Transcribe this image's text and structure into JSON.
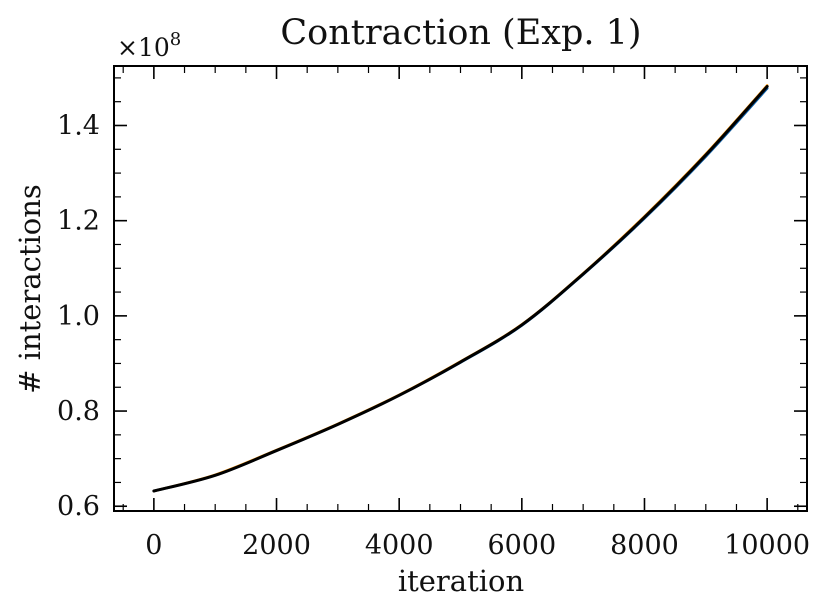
{
  "chart_data": {
    "type": "line",
    "title": "Contraction (Exp. 1)",
    "xlabel": "iteration",
    "ylabel": "# interactions",
    "offset_label": "×10",
    "offset_exponent": "8",
    "xlim": [
      -650,
      10650
    ],
    "ylim": [
      0.59,
      1.525
    ],
    "xticks": [
      0,
      2000,
      4000,
      6000,
      8000,
      10000
    ],
    "xtick_labels": [
      "0",
      "2000",
      "4000",
      "6000",
      "8000",
      "10000"
    ],
    "yticks": [
      0.6,
      0.8,
      1.0,
      1.2,
      1.4
    ],
    "ytick_labels": [
      "0.6",
      "0.8",
      "1.0",
      "1.2",
      "1.4"
    ],
    "grid": false,
    "series": [
      {
        "color": "#0c5da5",
        "x": [
          0,
          1000,
          2000,
          3000,
          4000,
          5000,
          6000,
          7000,
          8000,
          9000,
          10000
        ],
        "y": [
          0.632,
          0.665,
          0.717,
          0.772,
          0.833,
          0.902,
          0.98,
          1.087,
          1.205,
          1.335,
          1.478
        ]
      },
      {
        "color": "#ff9500",
        "x": [
          0,
          1000,
          2000,
          3000,
          4000,
          5000,
          6000,
          7000,
          8000,
          9000,
          10000
        ],
        "y": [
          0.632,
          0.666,
          0.718,
          0.773,
          0.834,
          0.904,
          0.982,
          1.089,
          1.209,
          1.34,
          1.484
        ]
      },
      {
        "color": "#000000",
        "x": [
          0,
          1000,
          2000,
          3000,
          4000,
          5000,
          6000,
          7000,
          8000,
          9000,
          10000
        ],
        "y": [
          0.632,
          0.665,
          0.717,
          0.772,
          0.833,
          0.903,
          0.981,
          1.088,
          1.207,
          1.338,
          1.482
        ]
      }
    ]
  }
}
